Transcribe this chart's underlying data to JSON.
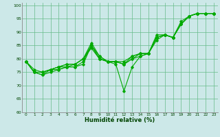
{
  "xlabel": "Humidité relative (%)",
  "bg_color": "#cce8e8",
  "grid_color": "#66bb88",
  "line_color": "#00aa00",
  "xlim": [
    -0.5,
    23.5
  ],
  "ylim": [
    60,
    101
  ],
  "yticks": [
    60,
    65,
    70,
    75,
    80,
    85,
    90,
    95,
    100
  ],
  "xticks": [
    0,
    1,
    2,
    3,
    4,
    5,
    6,
    7,
    8,
    9,
    10,
    11,
    12,
    13,
    14,
    15,
    16,
    17,
    18,
    19,
    20,
    21,
    22,
    23
  ],
  "series": [
    [
      79,
      75,
      74,
      75,
      76,
      77,
      77,
      78,
      85,
      81,
      79,
      78,
      68,
      77,
      81,
      82,
      89,
      89,
      88,
      93,
      96,
      97,
      97,
      97
    ],
    [
      79,
      75,
      75,
      76,
      77,
      78,
      78,
      80,
      86,
      81,
      79,
      79,
      79,
      81,
      82,
      82,
      88,
      89,
      88,
      94,
      96,
      97,
      97,
      97
    ],
    [
      79,
      76,
      75,
      76,
      77,
      78,
      78,
      80,
      85,
      80,
      79,
      79,
      78,
      81,
      82,
      82,
      87,
      89,
      88,
      93,
      96,
      97,
      97,
      97
    ],
    [
      79,
      75,
      75,
      76,
      77,
      77,
      78,
      80,
      84,
      80,
      79,
      79,
      78,
      80,
      81,
      82,
      88,
      89,
      88,
      93,
      96,
      97,
      97,
      97
    ],
    [
      79,
      75,
      74,
      76,
      76,
      77,
      77,
      79,
      85,
      80,
      79,
      79,
      78,
      80,
      82,
      82,
      88,
      89,
      88,
      93,
      96,
      97,
      97,
      97
    ]
  ],
  "marker": "D",
  "markersize": 1.8,
  "linewidth": 0.8
}
